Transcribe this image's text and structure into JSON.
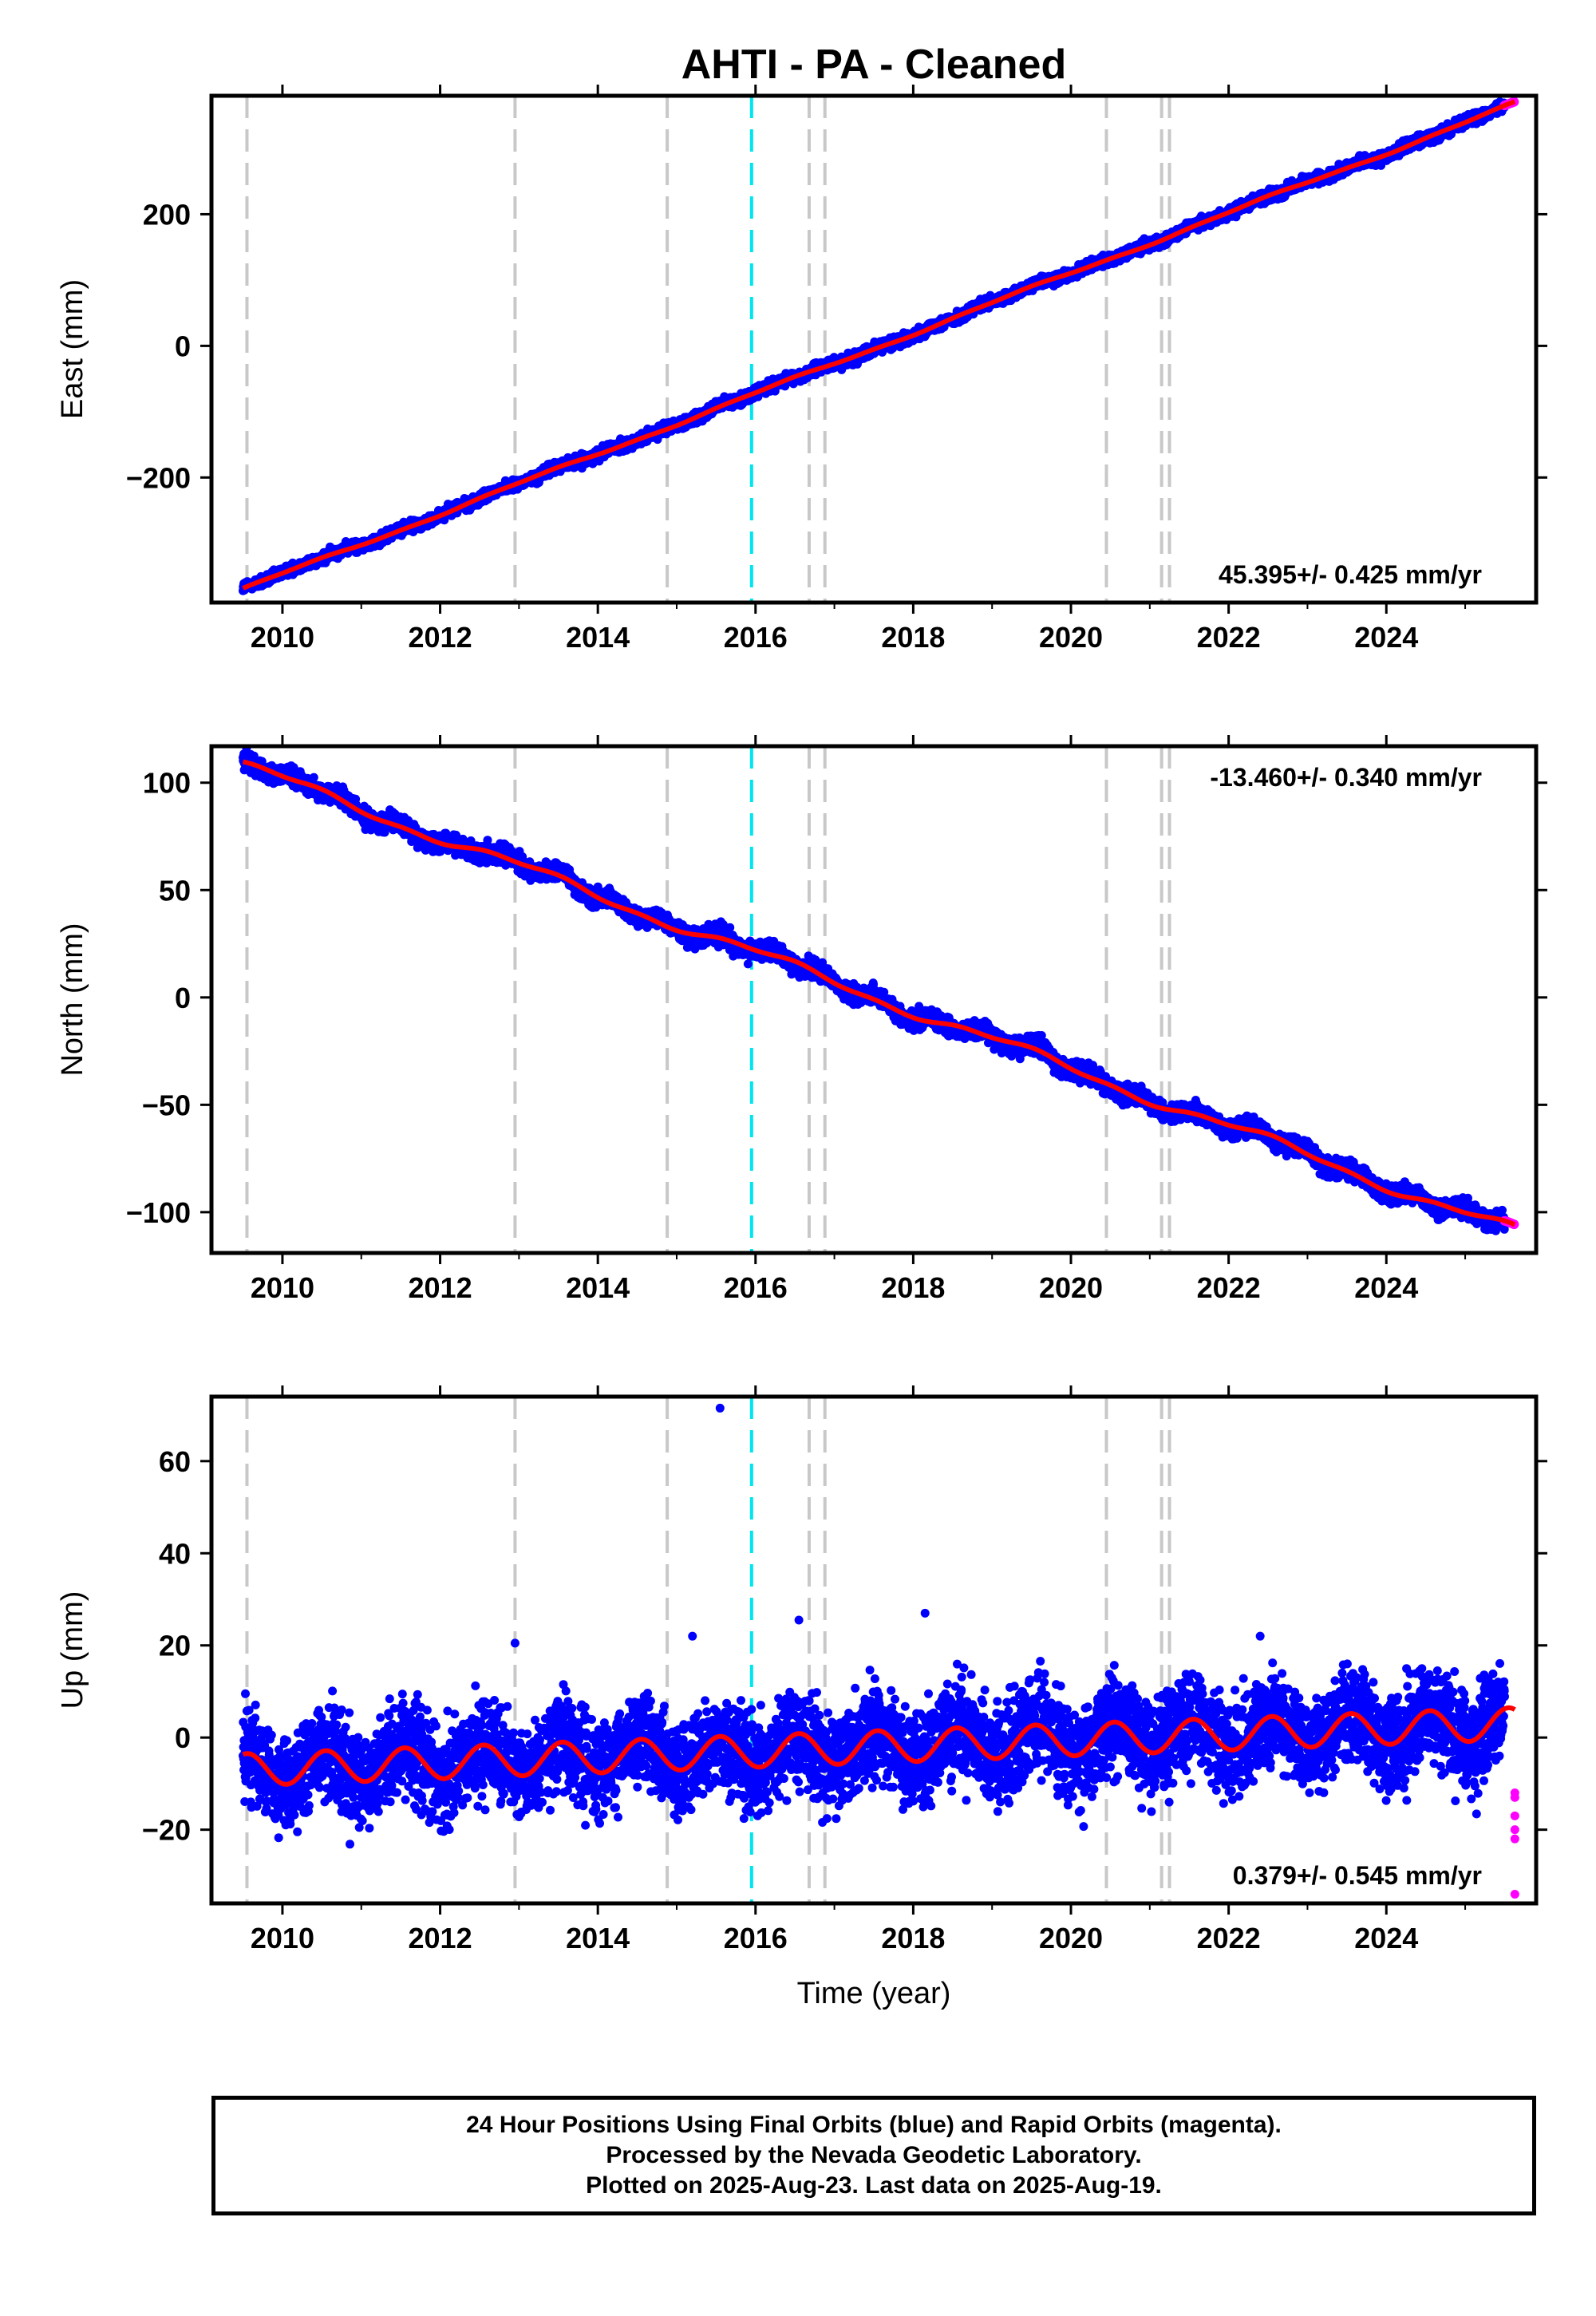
{
  "colors": {
    "final_orbits": "#0000ff",
    "rapid_orbits": "#ff00ff",
    "model": "#ff0000",
    "equipment_change": "#c8c8c8",
    "event": "#00e5ee"
  },
  "chart_data": {
    "title": "AHTI  - PA - Cleaned",
    "xlabel": "Time (year)",
    "xlim": [
      2009.1,
      2025.9
    ],
    "xticks": [
      2010,
      2012,
      2014,
      2016,
      2018,
      2020,
      2022,
      2024
    ],
    "xtick_labels": [
      "2010",
      "2012",
      "2014",
      "2016",
      "2018",
      "2020",
      "2022",
      "2024"
    ],
    "start_year": 2009.5,
    "end_year": 2025.63,
    "rapid_start_year": 2025.5,
    "vertical_lines": [
      {
        "x": 2009.55,
        "kind": "equipment_change"
      },
      {
        "x": 2012.95,
        "kind": "equipment_change"
      },
      {
        "x": 2014.88,
        "kind": "equipment_change"
      },
      {
        "x": 2015.95,
        "kind": "event"
      },
      {
        "x": 2016.68,
        "kind": "equipment_change"
      },
      {
        "x": 2016.88,
        "kind": "equipment_change"
      },
      {
        "x": 2020.45,
        "kind": "equipment_change"
      },
      {
        "x": 2021.15,
        "kind": "equipment_change"
      },
      {
        "x": 2021.25,
        "kind": "equipment_change"
      }
    ],
    "panels": [
      {
        "type": "scatter",
        "component": "East",
        "ylabel": "East (mm)",
        "ylim": [
          -390,
          380
        ],
        "yticks": [
          -200,
          0,
          200
        ],
        "ytick_labels": [
          "−200",
          "0",
          "200"
        ],
        "start_value": -370,
        "end_value": 368,
        "rate_label": "45.395+/- 0.425 mm/yr",
        "rate_label_position": "bottom-right",
        "noise": 4
      },
      {
        "type": "scatter",
        "component": "North",
        "ylabel": "North (mm)",
        "ylim": [
          -119,
          117
        ],
        "yticks": [
          -100,
          -50,
          0,
          50,
          100
        ],
        "ytick_labels": [
          "−100",
          "−50",
          "0",
          "50",
          "100"
        ],
        "start_value": 108,
        "end_value": -109,
        "rate_label": "-13.460+/- 0.340 mm/yr",
        "rate_label_position": "top-right",
        "noise": 2
      },
      {
        "type": "scatter",
        "component": "Up",
        "ylabel": "Up (mm)",
        "ylim": [
          -36,
          74
        ],
        "yticks": [
          -20,
          0,
          20,
          40,
          60
        ],
        "ytick_labels": [
          "−20",
          "0",
          "20",
          "40",
          "60"
        ],
        "start_value": -7,
        "end_value": 3,
        "seasonal_amplitude": 3.5,
        "rate_label": "0.379+/- 0.545 mm/yr",
        "rate_label_position": "bottom-right",
        "noise": 5,
        "outliers": [
          {
            "x": 2015.55,
            "y": 71.5
          },
          {
            "x": 2016.55,
            "y": 25.5
          },
          {
            "x": 2018.15,
            "y": 27
          },
          {
            "x": 2015.2,
            "y": 22
          },
          {
            "x": 2022.4,
            "y": 22
          },
          {
            "x": 2012.95,
            "y": 20.5
          }
        ],
        "rapid_points": [
          -12,
          -13,
          -17,
          -20,
          -22,
          -34
        ]
      }
    ]
  },
  "footer": {
    "line1": "24 Hour Positions Using Final Orbits (blue) and Rapid Orbits (magenta).",
    "line2": "Processed by the Nevada Geodetic Laboratory.",
    "line3": "Plotted on 2025-Aug-23. Last data on 2025-Aug-19."
  }
}
